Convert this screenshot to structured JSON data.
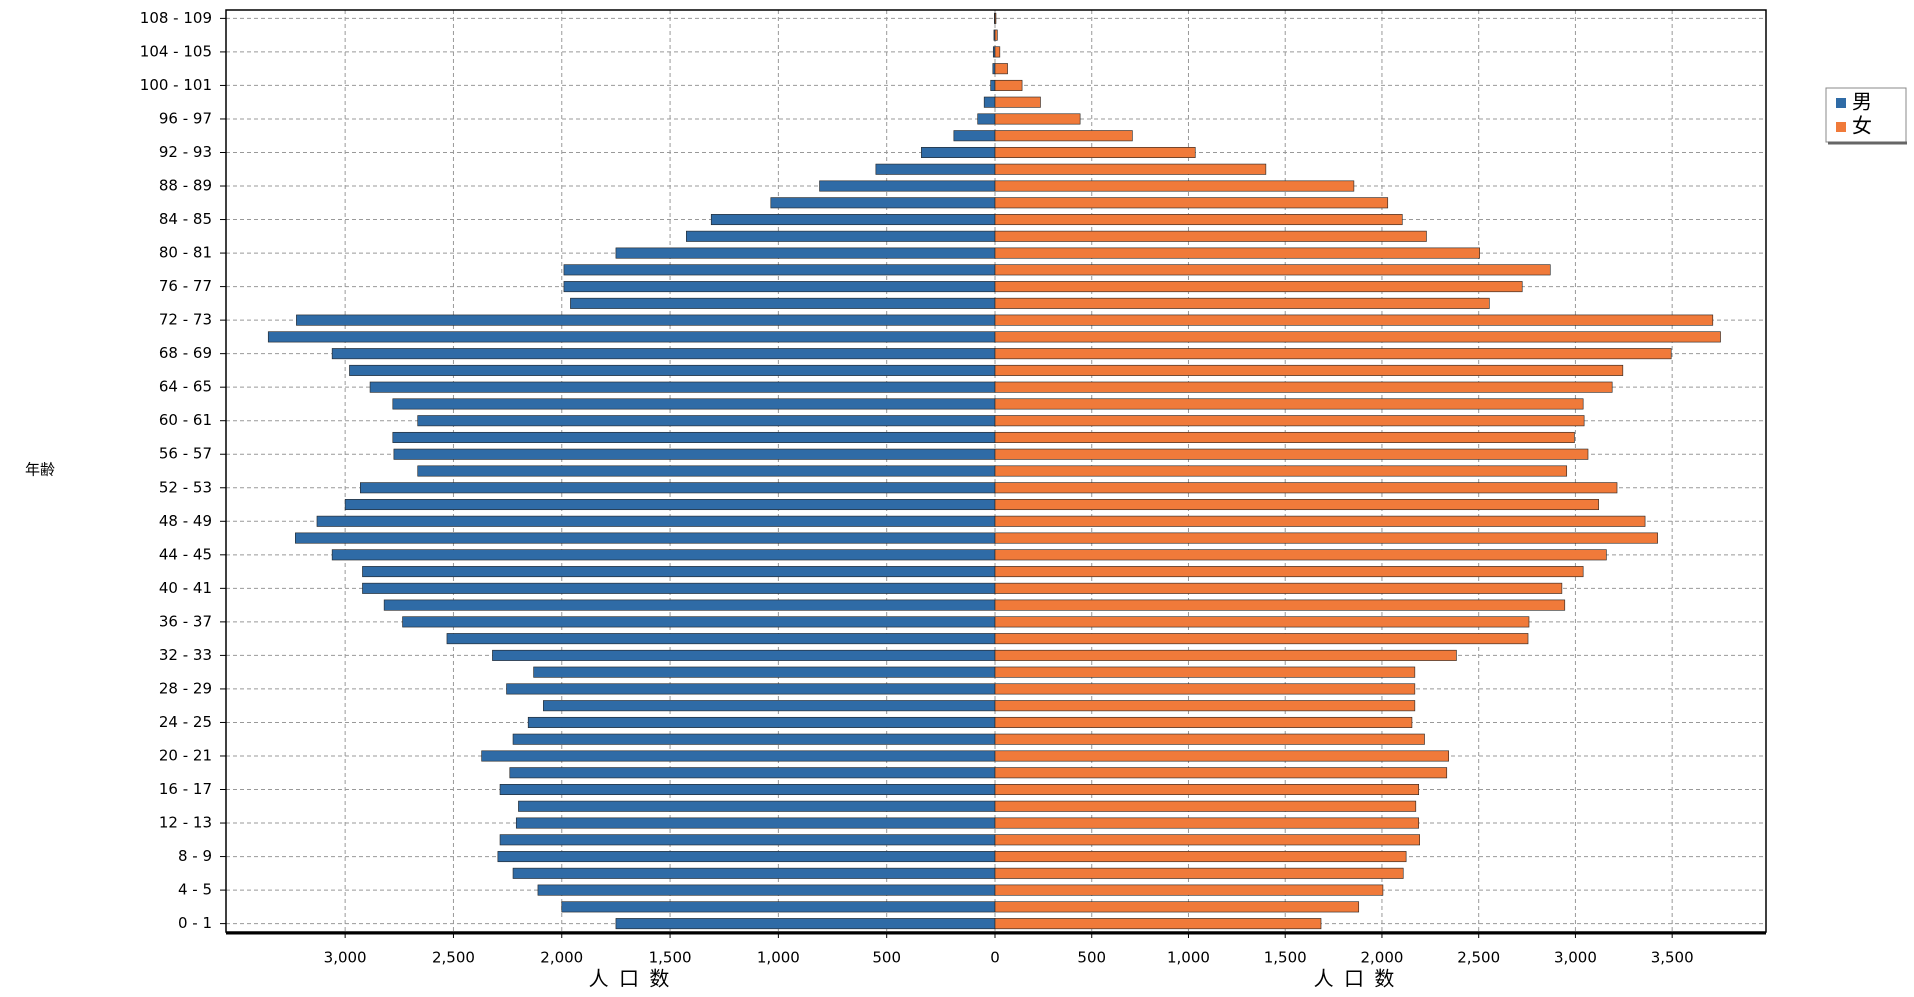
{
  "chart_data": {
    "type": "pyramid",
    "y_label": "年齢",
    "x_label": "人 口 数",
    "x2_label": "人 口 数",
    "categories": [
      "0 - 1",
      null,
      "4 - 5",
      null,
      "8 - 9",
      null,
      "12 - 13",
      null,
      "16 - 17",
      null,
      "20 - 21",
      null,
      "24 - 25",
      null,
      "28 - 29",
      null,
      "32 - 33",
      null,
      "36 - 37",
      null,
      "40 - 41",
      null,
      "44 - 45",
      null,
      "48 - 49",
      null,
      "52 - 53",
      null,
      "56 - 57",
      null,
      "60 - 61",
      null,
      "64 - 65",
      null,
      "68 - 69",
      null,
      "72 - 73",
      null,
      "76 - 77",
      null,
      "80 - 81",
      null,
      "84 - 85",
      null,
      "88 - 89",
      null,
      "92 - 93",
      null,
      "96 - 97",
      null,
      "100 - 101",
      null,
      "104 - 105",
      null,
      "108 - 109"
    ],
    "series": [
      {
        "name": "男",
        "color": "#2f6ba6",
        "axis": "x",
        "values": [
          1750,
          2000,
          2110,
          2225,
          2295,
          2285,
          2210,
          2200,
          2285,
          2240,
          2370,
          2225,
          2155,
          2085,
          2255,
          2130,
          2320,
          2530,
          2735,
          2820,
          2920,
          2920,
          3060,
          3230,
          3130,
          3000,
          2930,
          2665,
          2775,
          2780,
          2665,
          2780,
          2885,
          2980,
          3060,
          3355,
          3225,
          1960,
          1990,
          1990,
          1750,
          1425,
          1310,
          1035,
          810,
          550,
          340,
          190,
          80,
          50,
          20,
          10,
          8,
          5,
          3
        ]
      },
      {
        "name": "女",
        "color": "#f07a3a",
        "axis": "x2",
        "values": [
          1685,
          1880,
          2005,
          2110,
          2125,
          2195,
          2190,
          2175,
          2190,
          2335,
          2345,
          2220,
          2155,
          2170,
          2170,
          2170,
          2385,
          2755,
          2760,
          2945,
          2930,
          3040,
          3160,
          3425,
          3360,
          3120,
          3215,
          2955,
          3065,
          2995,
          3045,
          3040,
          3190,
          3245,
          3495,
          3750,
          3710,
          2555,
          2725,
          2870,
          2505,
          2230,
          2105,
          2030,
          1855,
          1400,
          1035,
          710,
          440,
          235,
          140,
          65,
          25,
          12,
          5
        ]
      }
    ],
    "xlim": [
      0,
      3550
    ],
    "xticks": [
      0,
      {
        "value": 500,
        "label": "500"
      },
      {
        "value": 1000,
        "label": "1,000"
      },
      {
        "value": 1500,
        "label": "1,500"
      },
      {
        "value": 2000,
        "label": "2,000"
      },
      {
        "value": 2500,
        "label": "2,500"
      },
      {
        "value": 3000,
        "label": "3,000"
      }
    ],
    "x2lim": [
      0,
      3985
    ],
    "x2ticks": [
      500,
      {
        "value": 1000,
        "label": "1,000"
      },
      {
        "value": 1500,
        "label": "1,500"
      },
      {
        "value": 2000,
        "label": "2,000"
      },
      {
        "value": 2500,
        "label": "2,500"
      },
      {
        "value": 3000,
        "label": "3,000"
      },
      {
        "value": 3500,
        "label": "3,500"
      }
    ],
    "grid": true,
    "legend": "right"
  }
}
